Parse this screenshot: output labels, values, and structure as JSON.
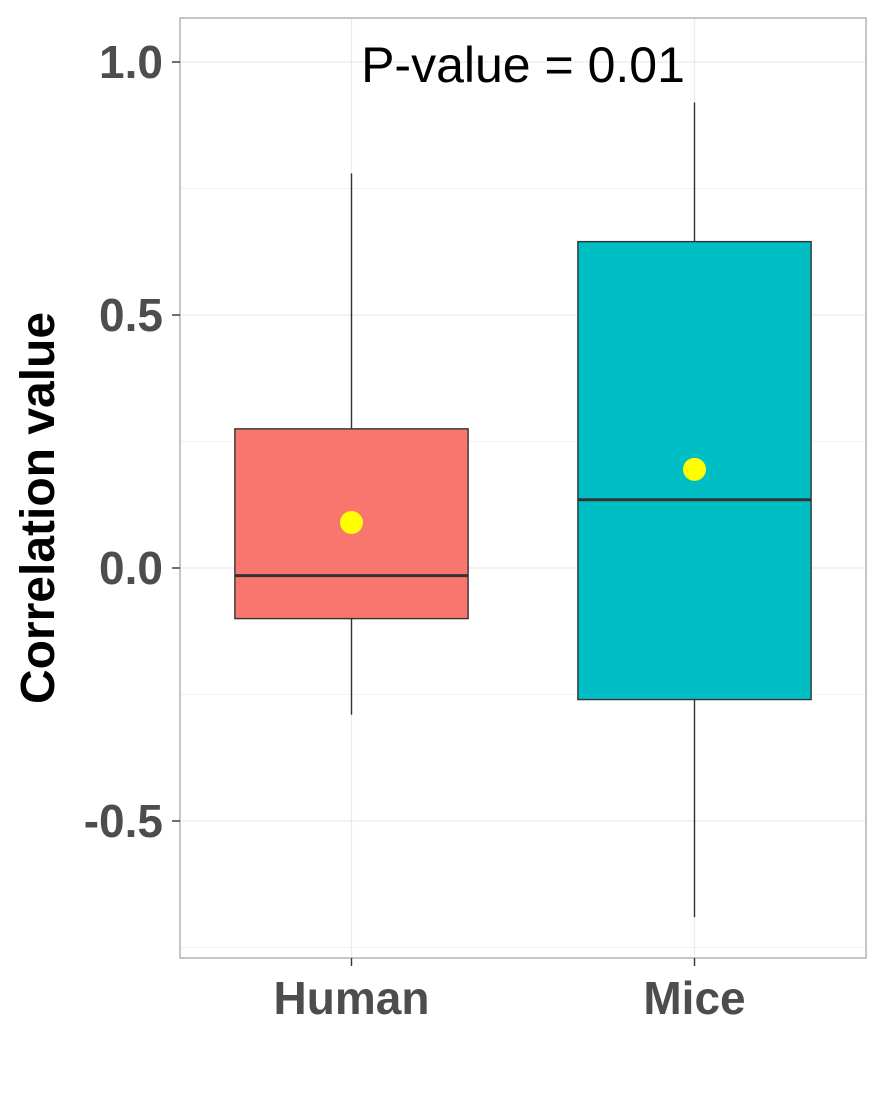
{
  "chart_data": {
    "type": "box",
    "ylabel": "Correlation value",
    "xlabel": "",
    "ylim": [
      -0.77,
      1.08
    ],
    "y_ticks": [
      1.0,
      0.5,
      0.0,
      -0.5
    ],
    "y_tick_labels": [
      "1.0",
      "0.5",
      "0.0",
      "-0.5"
    ],
    "y_minor_ticks": [
      0.75,
      0.25,
      -0.25,
      -0.75
    ],
    "categories": [
      "Human",
      "Mice"
    ],
    "boxes": [
      {
        "category": "Human",
        "whisker_low": -0.29,
        "q1": -0.1,
        "median": -0.015,
        "q3": 0.275,
        "whisker_high": 0.78,
        "mean": 0.09,
        "color": "#F8766D"
      },
      {
        "category": "Mice",
        "whisker_low": -0.69,
        "q1": -0.26,
        "median": 0.135,
        "q3": 0.645,
        "whisker_high": 0.92,
        "mean": 0.195,
        "color": "#00BFC4"
      }
    ],
    "mean_marker_color": "#FFFF00",
    "grid": true,
    "annotation": "P-value = 0.01"
  }
}
